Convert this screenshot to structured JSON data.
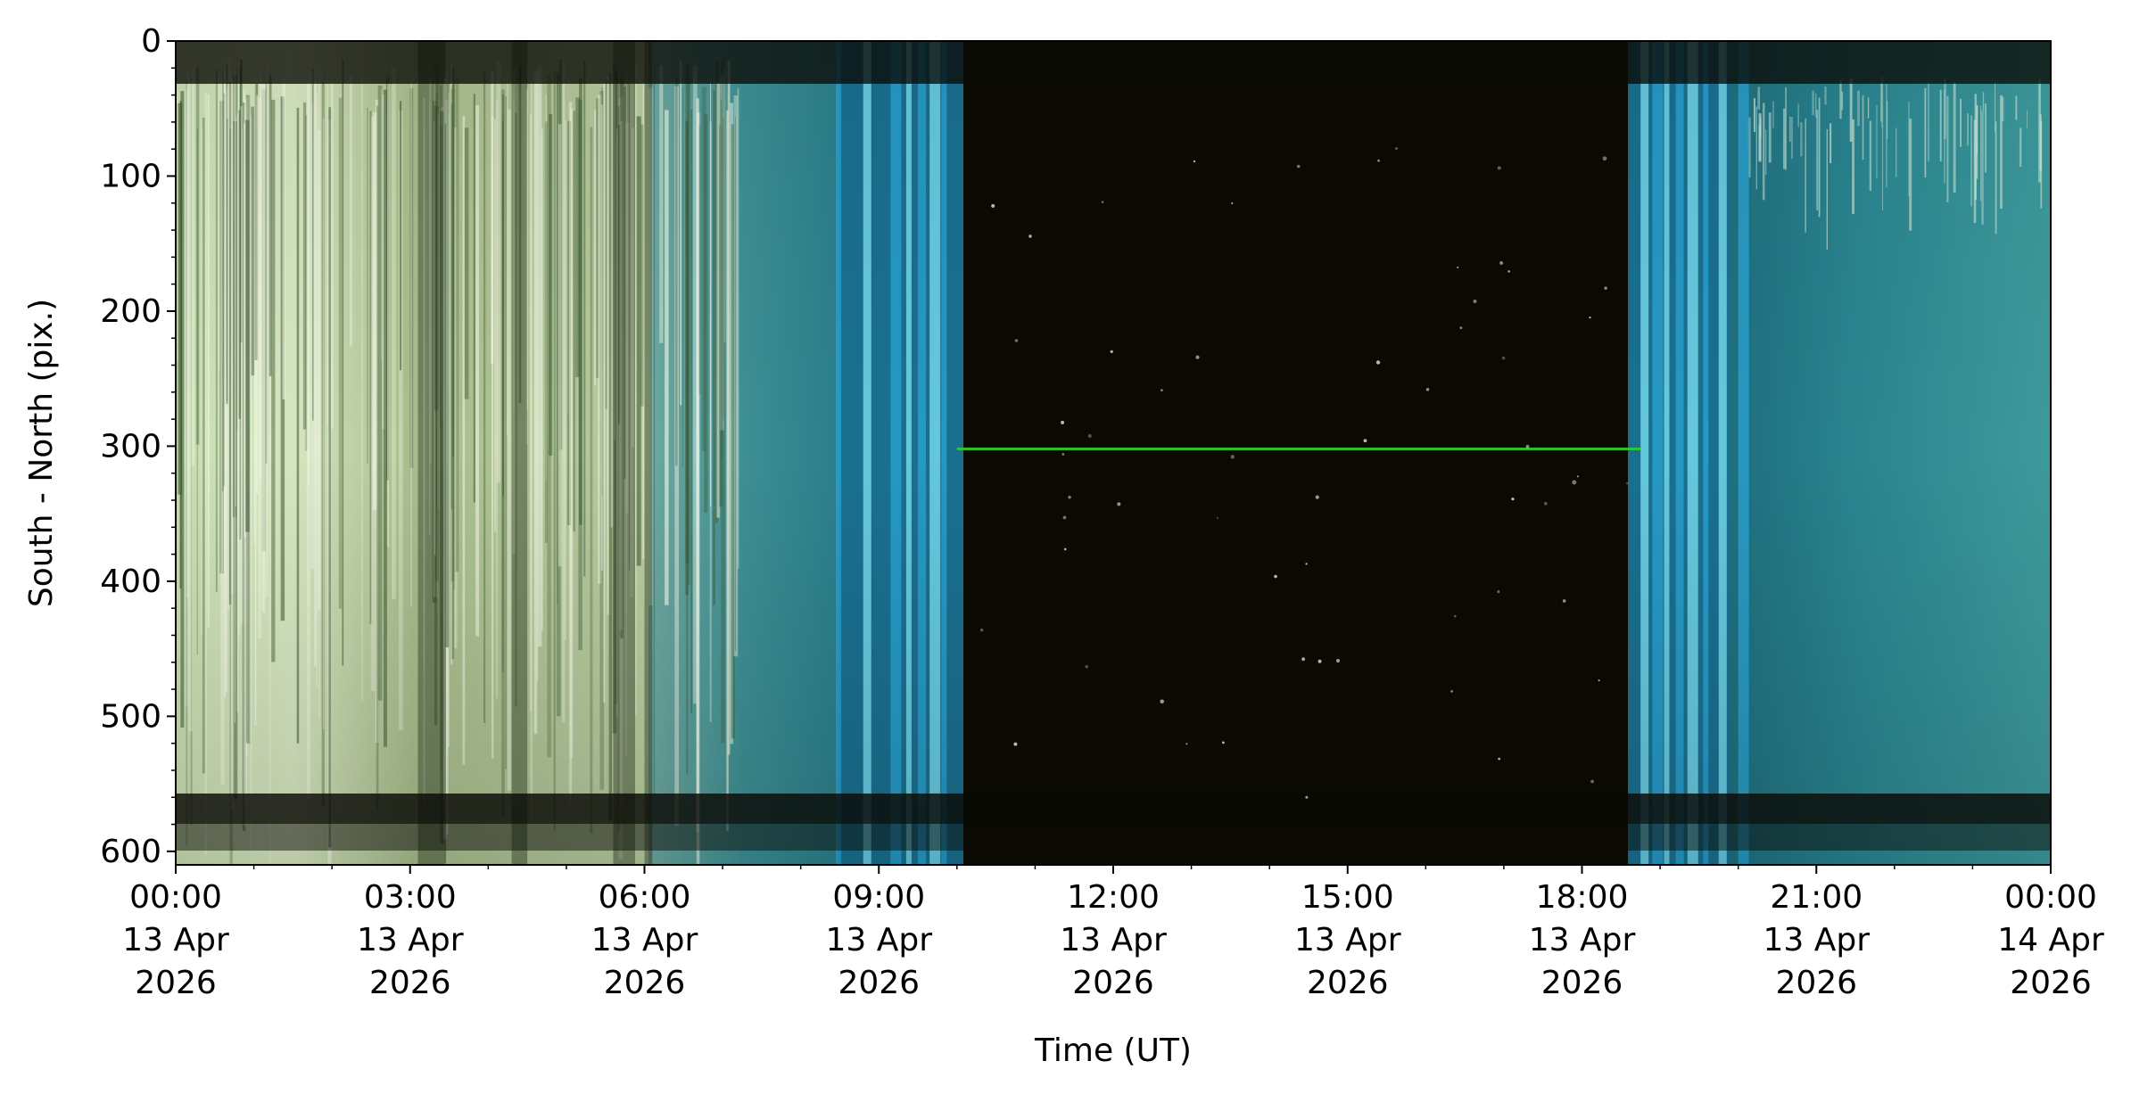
{
  "chart_data": {
    "type": "heatmap",
    "title": "",
    "xlabel": "Time (UT)",
    "ylabel": "South - North (pix.)",
    "x_ticks": [
      {
        "time": "00:00",
        "date": "13 Apr",
        "year": "2026"
      },
      {
        "time": "03:00",
        "date": "13 Apr",
        "year": "2026"
      },
      {
        "time": "06:00",
        "date": "13 Apr",
        "year": "2026"
      },
      {
        "time": "09:00",
        "date": "13 Apr",
        "year": "2026"
      },
      {
        "time": "12:00",
        "date": "13 Apr",
        "year": "2026"
      },
      {
        "time": "15:00",
        "date": "13 Apr",
        "year": "2026"
      },
      {
        "time": "18:00",
        "date": "13 Apr",
        "year": "2026"
      },
      {
        "time": "21:00",
        "date": "13 Apr",
        "year": "2026"
      },
      {
        "time": "00:00",
        "date": "14 Apr",
        "year": "2026"
      }
    ],
    "xlim": [
      "2026-04-13T00:00",
      "2026-04-14T00:00"
    ],
    "y_ticks": [
      "0",
      "100",
      "200",
      "300",
      "400",
      "500",
      "600"
    ],
    "ylim": [
      610,
      0
    ],
    "grid": false,
    "segments": [
      {
        "start": "00:00",
        "end": "06:00",
        "appearance": "bright pale green-white streaks (cloudy daylight)"
      },
      {
        "start": "06:00",
        "end": "08:30",
        "appearance": "teal sky with pale streaks"
      },
      {
        "start": "08:30",
        "end": "10:00",
        "appearance": "cyan-blue vertical bands (twilight)"
      },
      {
        "start": "10:00",
        "end": "18:45",
        "appearance": "dark night sky"
      },
      {
        "start": "18:45",
        "end": "20:00",
        "appearance": "cyan-blue vertical bands (twilight)"
      },
      {
        "start": "20:00",
        "end": "24:00",
        "appearance": "teal sky"
      }
    ],
    "features": [
      {
        "type": "horizontal line",
        "y": 302,
        "x_start": "10:00",
        "x_end": "18:45",
        "color": "#2fd12f"
      },
      {
        "type": "dark band",
        "y_start": 0,
        "y_end": 32
      },
      {
        "type": "dark band",
        "y_start": 555,
        "y_end": 610
      }
    ]
  }
}
